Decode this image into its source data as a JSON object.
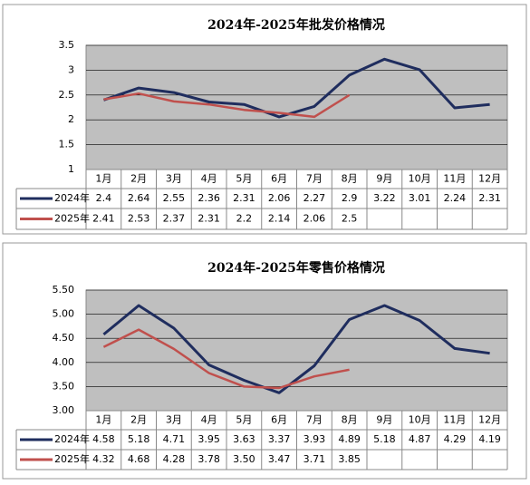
{
  "chart_data": [
    {
      "type": "line",
      "title": "2024年-2025年批发价格情况",
      "categories": [
        "1月",
        "2月",
        "3月",
        "4月",
        "5月",
        "6月",
        "7月",
        "8月",
        "9月",
        "10月",
        "11月",
        "12月"
      ],
      "series": [
        {
          "name": "2024年",
          "color": "#1f2d5e",
          "values": [
            2.4,
            2.64,
            2.55,
            2.36,
            2.31,
            2.06,
            2.27,
            2.9,
            3.22,
            3.01,
            2.24,
            2.31
          ]
        },
        {
          "name": "2025年",
          "color": "#c0504d",
          "values": [
            2.41,
            2.53,
            2.37,
            2.31,
            2.2,
            2.14,
            2.06,
            2.5,
            null,
            null,
            null,
            null
          ]
        }
      ],
      "ylim": [
        1,
        3.5
      ],
      "yticks": [
        1,
        1.5,
        2,
        2.5,
        3,
        3.5
      ],
      "grid": true,
      "data_table": true
    },
    {
      "type": "line",
      "title": "2024年-2025年零售价格情况",
      "categories": [
        "1月",
        "2月",
        "3月",
        "4月",
        "5月",
        "6月",
        "7月",
        "8月",
        "9月",
        "10月",
        "11月",
        "12月"
      ],
      "series": [
        {
          "name": "2024年",
          "color": "#1f2d5e",
          "values": [
            4.58,
            5.18,
            4.71,
            3.95,
            3.63,
            3.37,
            3.93,
            4.89,
            5.18,
            4.87,
            4.29,
            4.19
          ],
          "value_labels": [
            "4.58",
            "5.18",
            "4.71",
            "3.95",
            "3.63",
            "3.37",
            "3.93",
            "4.89",
            "5.18",
            "4.87",
            "4.29",
            "4.19"
          ]
        },
        {
          "name": "2025年",
          "color": "#c0504d",
          "values": [
            4.32,
            4.68,
            4.28,
            3.78,
            3.5,
            3.47,
            3.71,
            3.85,
            null,
            null,
            null,
            null
          ],
          "value_labels": [
            "4.32",
            "4.68",
            "4.28",
            "3.78",
            "3.50",
            "3.47",
            "3.71",
            "3.85",
            null,
            null,
            null,
            null
          ]
        }
      ],
      "ylim": [
        3,
        5.5
      ],
      "yticks": [
        {
          "value": 3,
          "label": "3.00"
        },
        {
          "value": 3.5,
          "label": "3.50"
        },
        {
          "value": 4,
          "label": "4.00"
        },
        {
          "value": 4.5,
          "label": "4.50"
        },
        {
          "value": 5,
          "label": "5.00"
        },
        {
          "value": 5.5,
          "label": "5.50"
        }
      ],
      "grid": true,
      "data_table": true
    }
  ]
}
